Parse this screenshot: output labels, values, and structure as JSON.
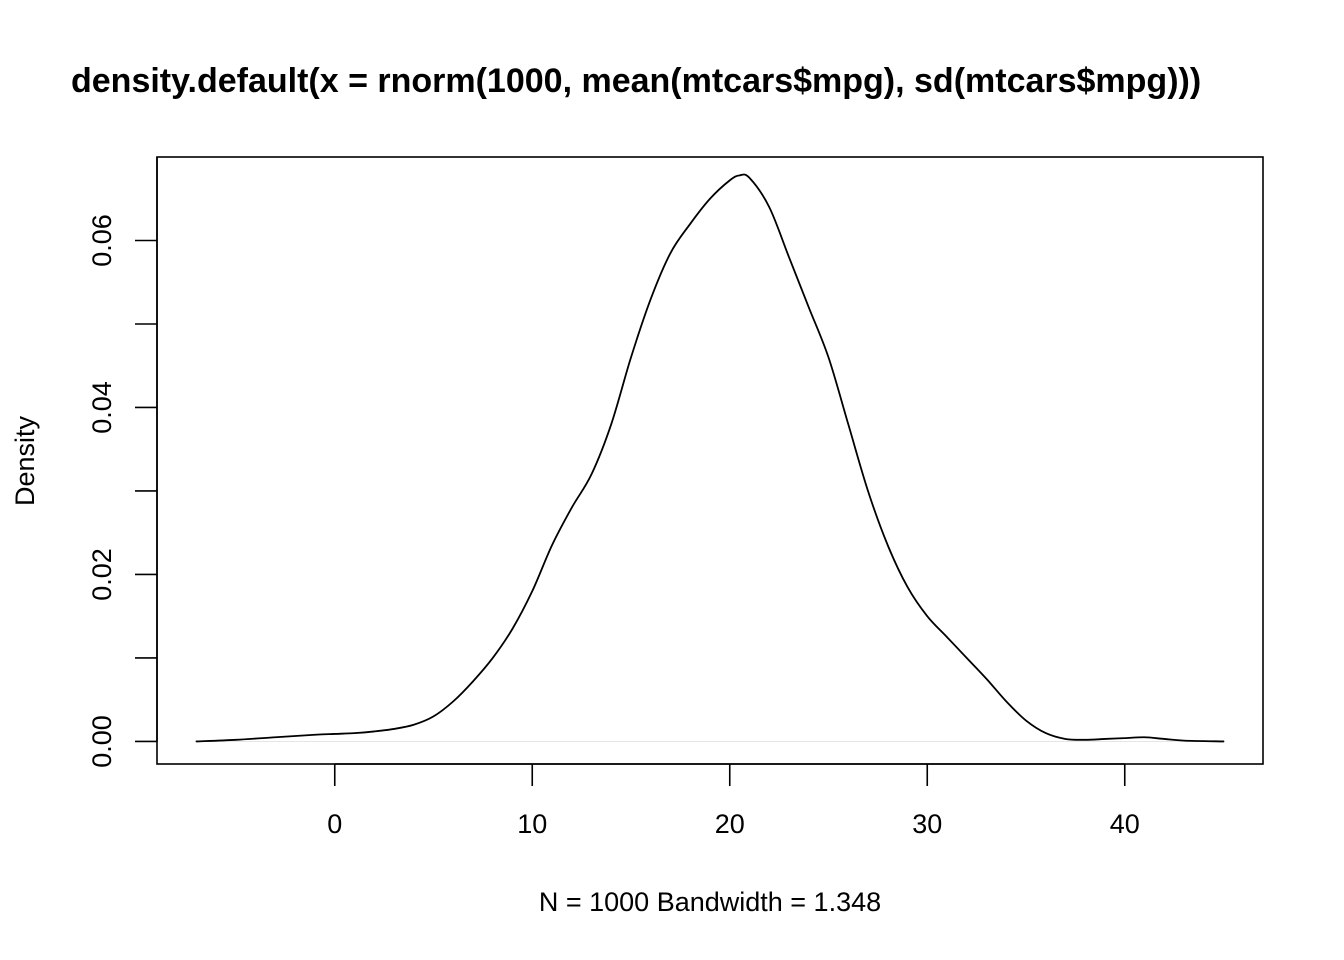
{
  "chart_data": {
    "type": "line",
    "title": "density.default(x = rnorm(1000, mean(mtcars$mpg), sd(mtcars$mpg)))",
    "xlabel": "N = 1000   Bandwidth = 1.348",
    "ylabel": "Density",
    "xlim": [
      -9,
      47
    ],
    "ylim": [
      -0.0027,
      0.07
    ],
    "x_ticks": [
      0,
      10,
      20,
      30,
      40
    ],
    "x_tick_labels": [
      "0",
      "10",
      "20",
      "30",
      "40"
    ],
    "y_ticks": [
      0.0,
      0.01,
      0.02,
      0.03,
      0.04,
      0.05,
      0.06
    ],
    "y_tick_labels": [
      "0.00",
      "",
      "0.02",
      "",
      "0.04",
      "",
      "0.06"
    ],
    "grid": false,
    "line_color": "#000000",
    "zero_line_color": "#e6e6e6",
    "series": [
      {
        "x": [
          -7,
          -5,
          -3,
          -1,
          0,
          1,
          2,
          3,
          4,
          5,
          6,
          7,
          8,
          9,
          10,
          11,
          12,
          13,
          14,
          15,
          16,
          17,
          18,
          19,
          20,
          20.5,
          21,
          22,
          23,
          24,
          25,
          26,
          27,
          28,
          29,
          30,
          31,
          32,
          33,
          34,
          35,
          36,
          37,
          38,
          39,
          40,
          41,
          42,
          43,
          45
        ],
        "y": [
          0.0,
          0.0002,
          0.0005,
          0.0008,
          0.0009,
          0.001,
          0.0012,
          0.0015,
          0.002,
          0.003,
          0.0048,
          0.0072,
          0.01,
          0.0135,
          0.018,
          0.0235,
          0.028,
          0.032,
          0.038,
          0.046,
          0.053,
          0.0585,
          0.062,
          0.065,
          0.0672,
          0.0678,
          0.0675,
          0.064,
          0.058,
          0.052,
          0.046,
          0.038,
          0.03,
          0.0235,
          0.0185,
          0.015,
          0.0125,
          0.01,
          0.0075,
          0.0048,
          0.0025,
          0.001,
          0.0003,
          0.0002,
          0.0003,
          0.0004,
          0.0005,
          0.0003,
          0.0001,
          0.0
        ]
      }
    ]
  }
}
